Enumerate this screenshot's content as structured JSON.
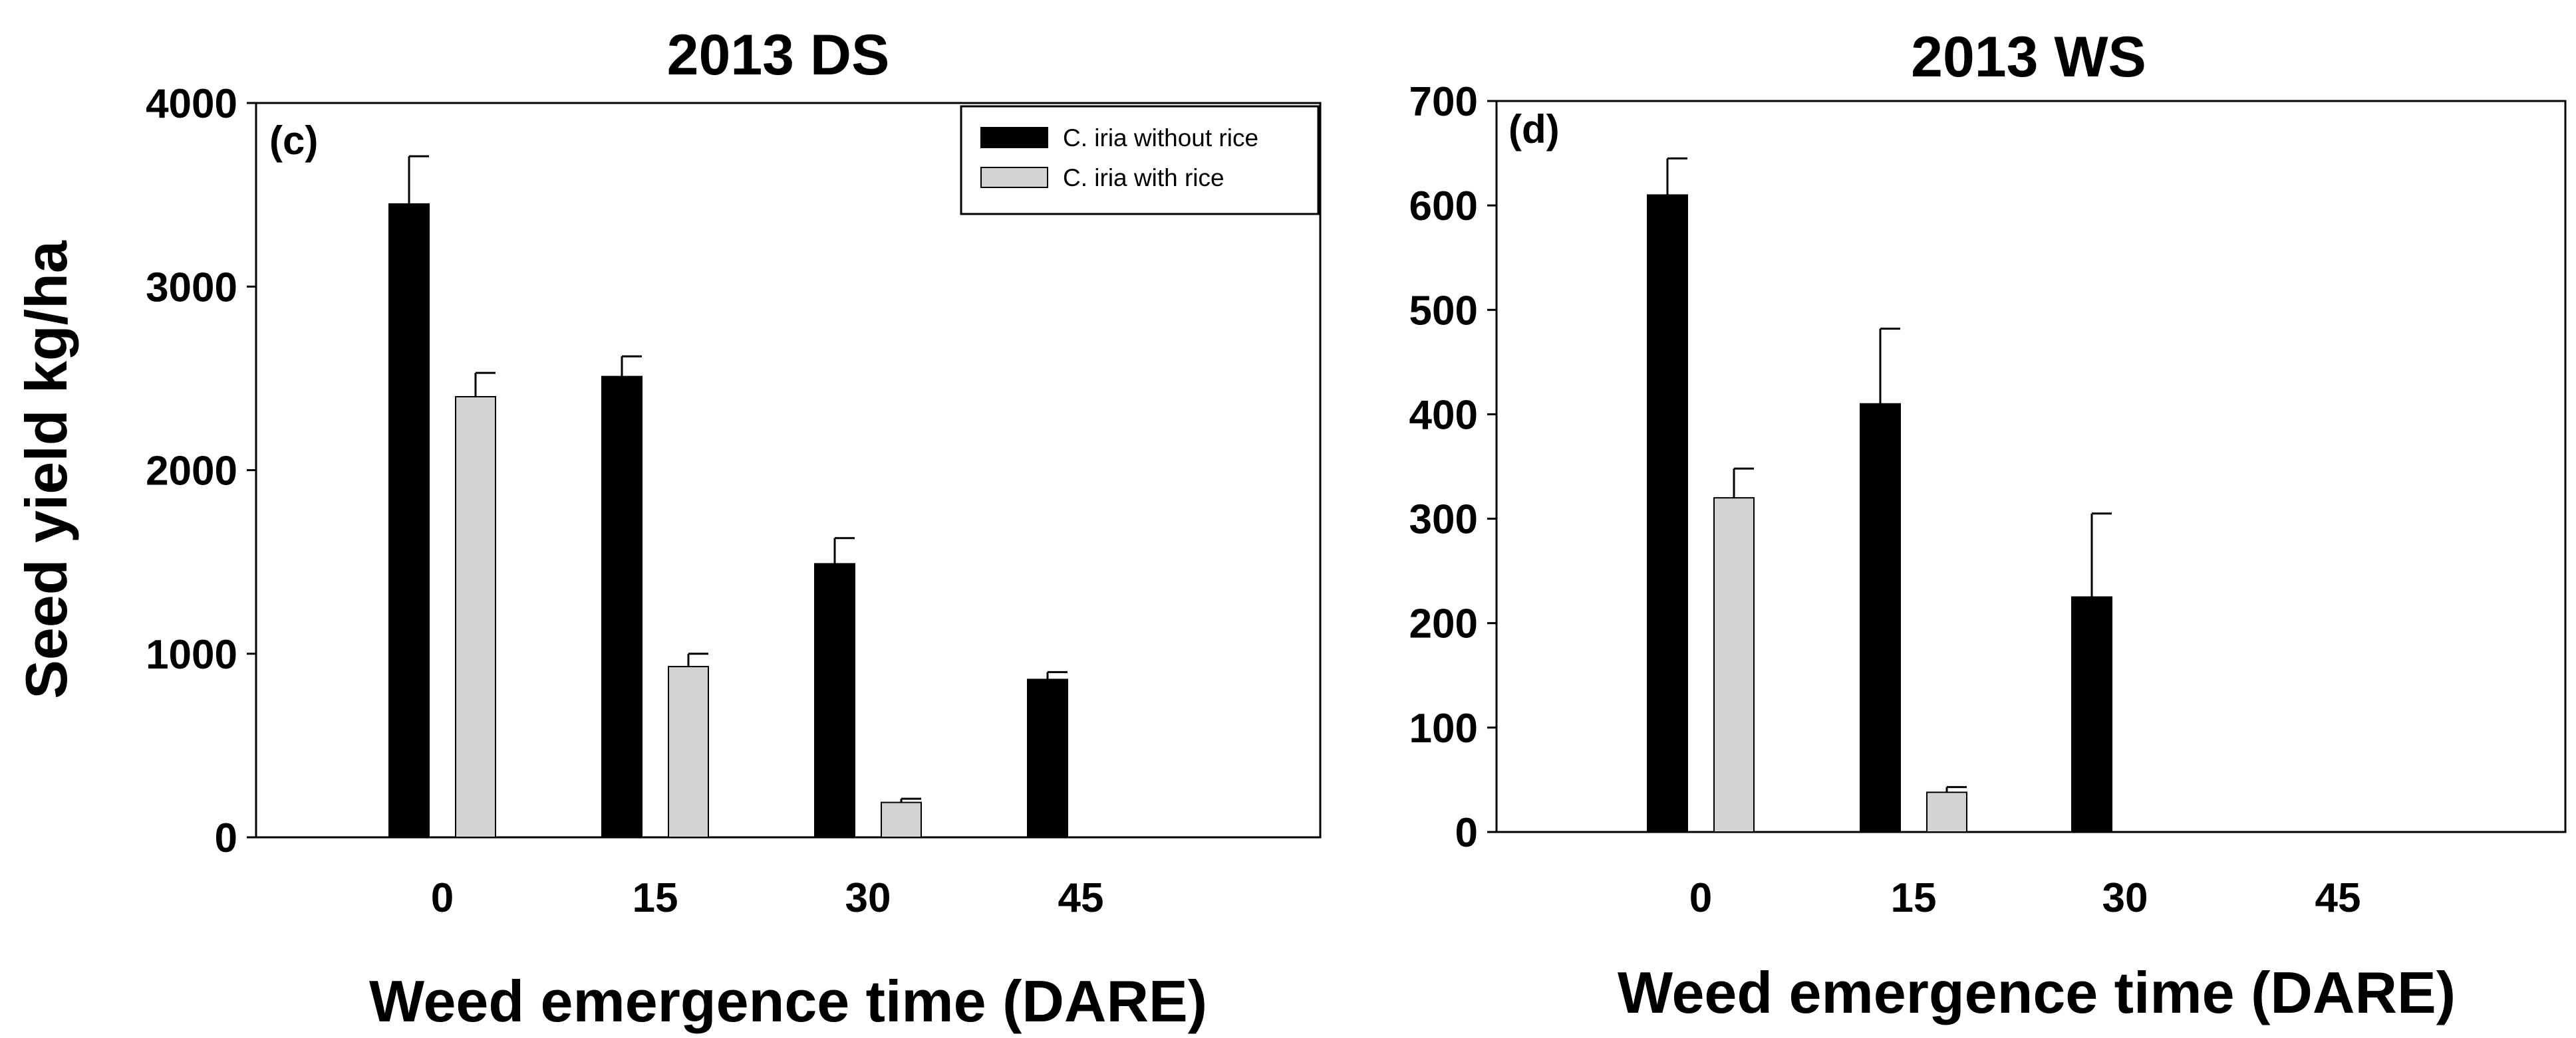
{
  "colors": {
    "series_1": "#000000",
    "series_2": "#d3d3d3",
    "axis": "#000000"
  },
  "chart_data": [
    {
      "type": "bar",
      "title": "2013 DS",
      "panel_label": "(c)",
      "xlabel": "Weed emergence time (DARE)",
      "ylabel": "Seed yield kg/ha",
      "categories": [
        "0",
        "15",
        "30",
        "45"
      ],
      "ylim": [
        0,
        4000
      ],
      "yticks": [
        0,
        1000,
        2000,
        3000,
        4000
      ],
      "legend": {
        "position": "top-right",
        "entries": [
          "C. iria without rice",
          "C. iria with rice"
        ]
      },
      "series": [
        {
          "name": "C. iria without rice",
          "values": [
            3450,
            2510,
            1490,
            860
          ],
          "errors": [
            260,
            110,
            140,
            40
          ]
        },
        {
          "name": "C. iria with rice",
          "values": [
            2400,
            930,
            190,
            0
          ],
          "errors": [
            130,
            70,
            20,
            0
          ]
        }
      ]
    },
    {
      "type": "bar",
      "title": "2013 WS",
      "panel_label": "(d)",
      "xlabel": "Weed emergence time (DARE)",
      "ylabel": "",
      "categories": [
        "0",
        "15",
        "30",
        "45"
      ],
      "ylim": [
        0,
        700
      ],
      "yticks": [
        0,
        100,
        200,
        300,
        400,
        500,
        600,
        700
      ],
      "legend": null,
      "series": [
        {
          "name": "C. iria without rice",
          "values": [
            610,
            410,
            225,
            0
          ],
          "errors": [
            35,
            72,
            80,
            0
          ]
        },
        {
          "name": "C. iria with rice",
          "values": [
            320,
            38,
            0,
            0
          ],
          "errors": [
            28,
            5,
            0,
            0
          ]
        }
      ]
    }
  ]
}
